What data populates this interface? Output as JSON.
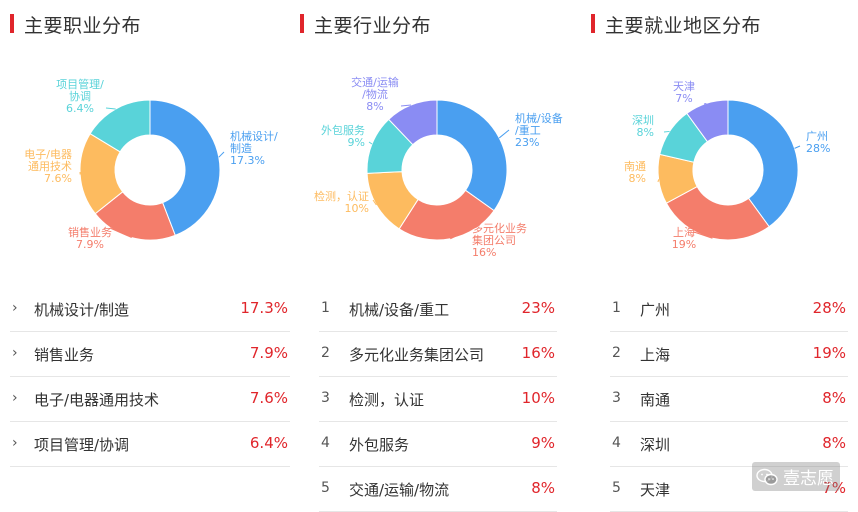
{
  "chart_data": [
    {
      "type": "pie",
      "title": "主要职业分布",
      "donut": true,
      "slices": [
        {
          "label_lines": [
            "机械设计/",
            "制造"
          ],
          "value_text": "17.3%",
          "value": 17.3,
          "color": "#4a9ff0"
        },
        {
          "label_lines": [
            "销售业务"
          ],
          "value_text": "7.9%",
          "value": 7.9,
          "color": "#f47d6b"
        },
        {
          "label_lines": [
            "电子/电器",
            "通用技术"
          ],
          "value_text": "7.6%",
          "value": 7.6,
          "color": "#fdbb5f"
        },
        {
          "label_lines": [
            "项目管理/",
            "协调"
          ],
          "value_text": "6.4%",
          "value": 6.4,
          "color": "#59d3d9"
        }
      ]
    },
    {
      "type": "pie",
      "title": "主要行业分布",
      "donut": true,
      "slices": [
        {
          "label_lines": [
            "机械/设备",
            "/重工"
          ],
          "value_text": "23%",
          "value": 23,
          "color": "#4a9ff0"
        },
        {
          "label_lines": [
            "多元化业务",
            "集团公司"
          ],
          "value_text": "16%",
          "value": 16,
          "color": "#f47d6b"
        },
        {
          "label_lines": [
            "检测，认证"
          ],
          "value_text": "10%",
          "value": 10,
          "color": "#fdbb5f"
        },
        {
          "label_lines": [
            "外包服务"
          ],
          "value_text": "9%",
          "value": 9,
          "color": "#59d3d9"
        },
        {
          "label_lines": [
            "交通/运输",
            "/物流"
          ],
          "value_text": "8%",
          "value": 8,
          "color": "#8a8cf3"
        }
      ]
    },
    {
      "type": "pie",
      "title": "主要就业地区分布",
      "donut": true,
      "slices": [
        {
          "label_lines": [
            "广州"
          ],
          "value_text": "28%",
          "value": 28,
          "color": "#4a9ff0"
        },
        {
          "label_lines": [
            "上海"
          ],
          "value_text": "19%",
          "value": 19,
          "color": "#f47d6b"
        },
        {
          "label_lines": [
            "南通"
          ],
          "value_text": "8%",
          "value": 8,
          "color": "#fdbb5f"
        },
        {
          "label_lines": [
            "深圳"
          ],
          "value_text": "8%",
          "value": 8,
          "color": "#59d3d9"
        },
        {
          "label_lines": [
            "天津"
          ],
          "value_text": "7%",
          "value": 7,
          "color": "#8a8cf3"
        }
      ]
    }
  ],
  "lists": [
    {
      "marker": "chevron",
      "rows": [
        {
          "mark": "›",
          "label": "机械设计/制造",
          "value": "17.3%"
        },
        {
          "mark": "›",
          "label": "销售业务",
          "value": "7.9%"
        },
        {
          "mark": "›",
          "label": "电子/电器通用技术",
          "value": "7.6%"
        },
        {
          "mark": "›",
          "label": "项目管理/协调",
          "value": "6.4%"
        }
      ]
    },
    {
      "marker": "number",
      "rows": [
        {
          "mark": "1",
          "label": "机械/设备/重工",
          "value": "23%"
        },
        {
          "mark": "2",
          "label": "多元化业务集团公司",
          "value": "16%"
        },
        {
          "mark": "3",
          "label": "检测，认证",
          "value": "10%"
        },
        {
          "mark": "4",
          "label": "外包服务",
          "value": "9%"
        },
        {
          "mark": "5",
          "label": "交通/运输/物流",
          "value": "8%"
        }
      ]
    },
    {
      "marker": "number",
      "rows": [
        {
          "mark": "1",
          "label": "广州",
          "value": "28%"
        },
        {
          "mark": "2",
          "label": "上海",
          "value": "19%"
        },
        {
          "mark": "3",
          "label": "南通",
          "value": "8%"
        },
        {
          "mark": "4",
          "label": "深圳",
          "value": "8%"
        },
        {
          "mark": "5",
          "label": "天津",
          "value": "7%"
        }
      ]
    }
  ],
  "watermark": {
    "text": "壹志愿",
    "icon": "wechat-icon"
  },
  "accent_color": "#e0252b"
}
